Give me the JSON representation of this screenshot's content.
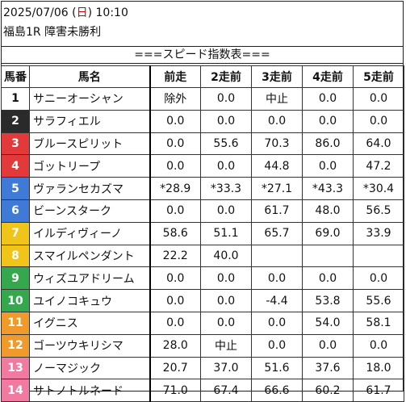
{
  "header": {
    "date_prefix": "2025/07/06 (",
    "weekday": "日",
    "date_suffix": ") 10:10",
    "race": "福島1R 障害未勝利"
  },
  "table_title": "===スピード指数表===",
  "columns": [
    "馬番",
    "馬名",
    "前走",
    "2走前",
    "3走前",
    "4走前",
    "5走前"
  ],
  "colors": {
    "frame1": "#ffffff",
    "frame2": "#2a2a2a",
    "frame3": "#e23a3a",
    "frame4": "#3f7bd6",
    "frame5": "#f0c419",
    "frame6": "#35a84d",
    "frame7": "#f09a2c",
    "frame8": "#f07aa0"
  },
  "rows": [
    {
      "no": "1",
      "name": "サニーオーシャン",
      "v": [
        "除外",
        "0.0",
        "中止",
        "0.0",
        "0.0"
      ],
      "frame": "frame1"
    },
    {
      "no": "2",
      "name": "サラフィエル",
      "v": [
        "0.0",
        "0.0",
        "0.0",
        "0.0",
        "0.0"
      ],
      "frame": "frame2"
    },
    {
      "no": "3",
      "name": "ブルースピリット",
      "v": [
        "0.0",
        "55.6",
        "70.3",
        "86.0",
        "64.0"
      ],
      "frame": "frame3"
    },
    {
      "no": "4",
      "name": "ゴットリープ",
      "v": [
        "0.0",
        "0.0",
        "44.8",
        "0.0",
        "47.2"
      ],
      "frame": "frame3"
    },
    {
      "no": "5",
      "name": "ヴァランセカズマ",
      "v": [
        "*28.9",
        "*33.3",
        "*27.1",
        "*43.3",
        "*30.4"
      ],
      "frame": "frame4"
    },
    {
      "no": "6",
      "name": "ビーンスターク",
      "v": [
        "0.0",
        "0.0",
        "61.7",
        "48.0",
        "56.5"
      ],
      "frame": "frame4"
    },
    {
      "no": "7",
      "name": "イルディヴィーノ",
      "v": [
        "58.6",
        "51.1",
        "65.7",
        "69.0",
        "33.9"
      ],
      "frame": "frame5"
    },
    {
      "no": "8",
      "name": "スマイルペンダント",
      "v": [
        "22.2",
        "40.0",
        "",
        "",
        ""
      ],
      "frame": "frame5"
    },
    {
      "no": "9",
      "name": "ウィズユアドリーム",
      "v": [
        "0.0",
        "0.0",
        "0.0",
        "0.0",
        "0.0"
      ],
      "frame": "frame6"
    },
    {
      "no": "10",
      "name": "ユイノコキュウ",
      "v": [
        "0.0",
        "0.0",
        "-4.4",
        "53.8",
        "55.6"
      ],
      "frame": "frame6"
    },
    {
      "no": "11",
      "name": "イグニス",
      "v": [
        "0.0",
        "0.0",
        "0.0",
        "54.0",
        "58.1"
      ],
      "frame": "frame7"
    },
    {
      "no": "12",
      "name": "ゴーツウキリシマ",
      "v": [
        "28.0",
        "中止",
        "0.0",
        "0.0",
        "0.0"
      ],
      "frame": "frame7"
    },
    {
      "no": "13",
      "name": "ノーマジック",
      "v": [
        "20.7",
        "37.0",
        "51.6",
        "37.6",
        "18.0"
      ],
      "frame": "frame8"
    },
    {
      "no": "14",
      "name": "サトノトルネード",
      "v": [
        "71.0",
        "67.4",
        "66.6",
        "60.2",
        "61.7"
      ],
      "frame": "frame8"
    }
  ]
}
